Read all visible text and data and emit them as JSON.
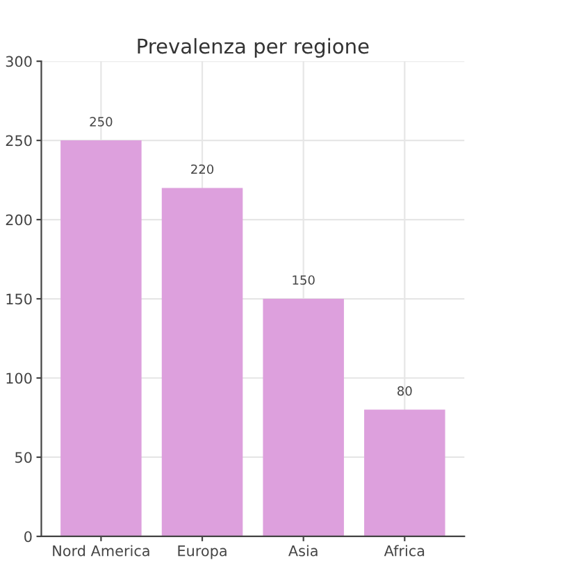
{
  "chart_data": {
    "type": "bar",
    "title": "Prevalenza per regione",
    "categories": [
      "Nord America",
      "Europa",
      "Asia",
      "Africa"
    ],
    "values": [
      250,
      220,
      150,
      80
    ],
    "color": "#dda0dd",
    "ylim": [
      0,
      300
    ],
    "yticks": [
      0,
      50,
      100,
      150,
      200,
      250,
      300
    ],
    "grid": true,
    "data_labels": true
  }
}
